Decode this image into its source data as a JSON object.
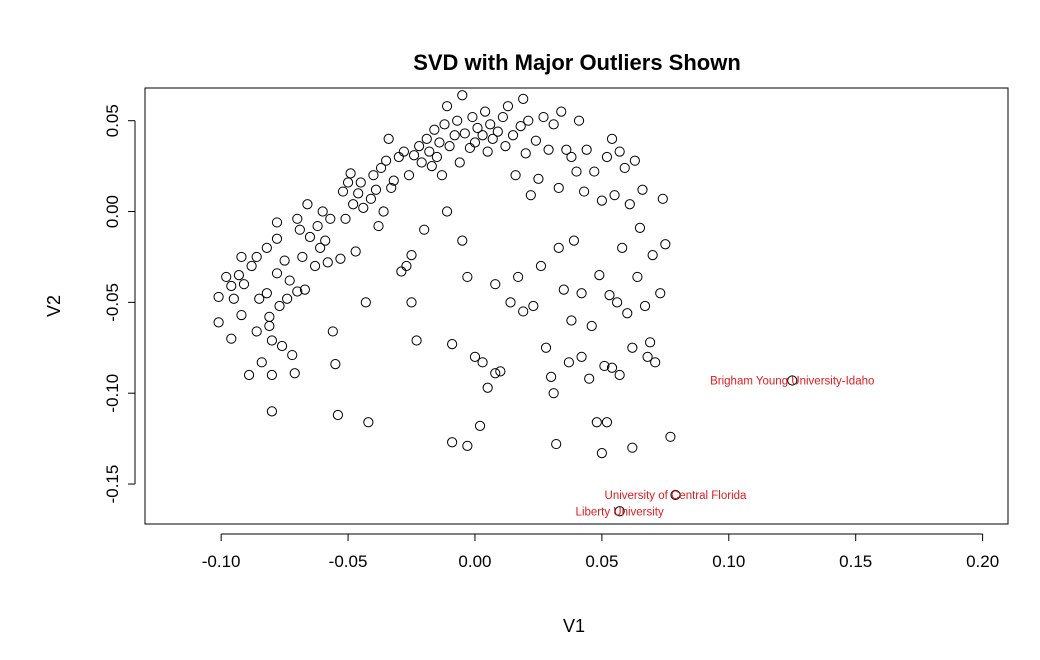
{
  "chart_data": {
    "type": "scatter",
    "title": "SVD with Major Outliers Shown",
    "xlabel": "V1",
    "ylabel": "V2",
    "xlim": [
      -0.13,
      0.21
    ],
    "ylim": [
      -0.172,
      0.068
    ],
    "xticks": [
      "-0.10",
      "-0.05",
      "0.00",
      "0.05",
      "0.10",
      "0.15",
      "0.20"
    ],
    "yticks": [
      "-0.15",
      "-0.10",
      "-0.05",
      "0.00",
      "0.05"
    ],
    "grid": false,
    "legend": "none",
    "marker_color": "#000000",
    "label_color": "#e41a1c",
    "outliers": [
      {
        "label": "Brigham Young University-Idaho",
        "x": 0.125,
        "y": -0.093
      },
      {
        "label": "University of Central Florida",
        "x": 0.079,
        "y": -0.156
      },
      {
        "label": "Liberty University",
        "x": 0.057,
        "y": -0.165
      }
    ],
    "points": [
      [
        -0.101,
        -0.061
      ],
      [
        -0.101,
        -0.047
      ],
      [
        -0.098,
        -0.036
      ],
      [
        -0.096,
        -0.041
      ],
      [
        -0.095,
        -0.048
      ],
      [
        -0.096,
        -0.07
      ],
      [
        -0.093,
        -0.035
      ],
      [
        -0.092,
        -0.025
      ],
      [
        -0.091,
        -0.04
      ],
      [
        -0.092,
        -0.057
      ],
      [
        -0.089,
        -0.09
      ],
      [
        -0.088,
        -0.03
      ],
      [
        -0.086,
        -0.025
      ],
      [
        -0.085,
        -0.048
      ],
      [
        -0.086,
        -0.066
      ],
      [
        -0.084,
        -0.083
      ],
      [
        -0.082,
        -0.02
      ],
      [
        -0.082,
        -0.045
      ],
      [
        -0.081,
        -0.058
      ],
      [
        -0.081,
        -0.063
      ],
      [
        -0.08,
        -0.071
      ],
      [
        -0.08,
        -0.09
      ],
      [
        -0.08,
        -0.11
      ],
      [
        -0.078,
        -0.006
      ],
      [
        -0.078,
        -0.015
      ],
      [
        -0.078,
        -0.034
      ],
      [
        -0.077,
        -0.052
      ],
      [
        -0.076,
        -0.074
      ],
      [
        -0.075,
        -0.027
      ],
      [
        -0.074,
        -0.048
      ],
      [
        -0.073,
        -0.038
      ],
      [
        -0.072,
        -0.079
      ],
      [
        -0.071,
        -0.089
      ],
      [
        -0.07,
        -0.004
      ],
      [
        -0.07,
        -0.044
      ],
      [
        -0.069,
        -0.01
      ],
      [
        -0.068,
        -0.025
      ],
      [
        -0.067,
        -0.043
      ],
      [
        -0.066,
        0.004
      ],
      [
        -0.065,
        -0.014
      ],
      [
        -0.063,
        -0.03
      ],
      [
        -0.062,
        -0.008
      ],
      [
        -0.061,
        -0.02
      ],
      [
        -0.06,
        0.0
      ],
      [
        -0.059,
        -0.016
      ],
      [
        -0.058,
        -0.028
      ],
      [
        -0.057,
        -0.004
      ],
      [
        -0.056,
        -0.066
      ],
      [
        -0.055,
        -0.084
      ],
      [
        -0.054,
        -0.112
      ],
      [
        -0.053,
        -0.026
      ],
      [
        -0.052,
        0.011
      ],
      [
        -0.051,
        -0.004
      ],
      [
        -0.05,
        0.016
      ],
      [
        -0.049,
        0.021
      ],
      [
        -0.048,
        0.004
      ],
      [
        -0.047,
        -0.022
      ],
      [
        -0.046,
        0.01
      ],
      [
        -0.045,
        0.016
      ],
      [
        -0.044,
        0.002
      ],
      [
        -0.043,
        -0.05
      ],
      [
        -0.042,
        -0.116
      ],
      [
        -0.041,
        0.007
      ],
      [
        -0.04,
        0.02
      ],
      [
        -0.039,
        0.012
      ],
      [
        -0.038,
        -0.008
      ],
      [
        -0.037,
        0.024
      ],
      [
        -0.036,
        0.0
      ],
      [
        -0.035,
        0.028
      ],
      [
        -0.034,
        0.04
      ],
      [
        -0.033,
        0.013
      ],
      [
        -0.032,
        0.017
      ],
      [
        -0.03,
        0.03
      ],
      [
        -0.029,
        -0.033
      ],
      [
        -0.028,
        0.033
      ],
      [
        -0.027,
        -0.03
      ],
      [
        -0.026,
        0.02
      ],
      [
        -0.025,
        -0.05
      ],
      [
        -0.025,
        -0.024
      ],
      [
        -0.024,
        0.031
      ],
      [
        -0.023,
        -0.071
      ],
      [
        -0.022,
        0.036
      ],
      [
        -0.021,
        0.027
      ],
      [
        -0.02,
        -0.01
      ],
      [
        -0.019,
        0.04
      ],
      [
        -0.018,
        0.033
      ],
      [
        -0.017,
        0.025
      ],
      [
        -0.016,
        0.045
      ],
      [
        -0.015,
        0.03
      ],
      [
        -0.014,
        0.038
      ],
      [
        -0.013,
        0.02
      ],
      [
        -0.012,
        0.048
      ],
      [
        -0.011,
        0.058
      ],
      [
        -0.011,
        0.0
      ],
      [
        -0.01,
        0.036
      ],
      [
        -0.009,
        -0.073
      ],
      [
        -0.009,
        -0.127
      ],
      [
        -0.008,
        0.042
      ],
      [
        -0.007,
        0.05
      ],
      [
        -0.006,
        0.027
      ],
      [
        -0.005,
        0.064
      ],
      [
        -0.005,
        -0.016
      ],
      [
        -0.004,
        0.043
      ],
      [
        -0.003,
        -0.129
      ],
      [
        -0.003,
        -0.036
      ],
      [
        -0.002,
        0.035
      ],
      [
        -0.001,
        0.052
      ],
      [
        0.0,
        0.038
      ],
      [
        0.0,
        -0.08
      ],
      [
        0.001,
        0.046
      ],
      [
        0.002,
        -0.118
      ],
      [
        0.003,
        0.042
      ],
      [
        0.003,
        -0.083
      ],
      [
        0.004,
        0.055
      ],
      [
        0.005,
        0.033
      ],
      [
        0.005,
        -0.097
      ],
      [
        0.006,
        0.048
      ],
      [
        0.007,
        0.04
      ],
      [
        0.008,
        -0.089
      ],
      [
        0.008,
        -0.04
      ],
      [
        0.009,
        0.044
      ],
      [
        0.01,
        -0.088
      ],
      [
        0.011,
        0.052
      ],
      [
        0.012,
        0.036
      ],
      [
        0.013,
        0.058
      ],
      [
        0.014,
        -0.05
      ],
      [
        0.015,
        0.042
      ],
      [
        0.016,
        0.02
      ],
      [
        0.017,
        -0.036
      ],
      [
        0.018,
        0.047
      ],
      [
        0.019,
        0.062
      ],
      [
        0.019,
        -0.055
      ],
      [
        0.02,
        0.032
      ],
      [
        0.021,
        0.05
      ],
      [
        0.022,
        0.009
      ],
      [
        0.023,
        -0.052
      ],
      [
        0.024,
        0.039
      ],
      [
        0.025,
        0.018
      ],
      [
        0.026,
        -0.03
      ],
      [
        0.027,
        0.052
      ],
      [
        0.028,
        -0.075
      ],
      [
        0.029,
        0.034
      ],
      [
        0.03,
        -0.091
      ],
      [
        0.031,
        0.048
      ],
      [
        0.031,
        -0.1
      ],
      [
        0.032,
        -0.128
      ],
      [
        0.033,
        0.013
      ],
      [
        0.033,
        -0.02
      ],
      [
        0.034,
        0.055
      ],
      [
        0.035,
        -0.043
      ],
      [
        0.036,
        0.034
      ],
      [
        0.037,
        -0.083
      ],
      [
        0.038,
        0.03
      ],
      [
        0.038,
        -0.06
      ],
      [
        0.039,
        -0.016
      ],
      [
        0.04,
        0.022
      ],
      [
        0.041,
        0.05
      ],
      [
        0.042,
        -0.045
      ],
      [
        0.042,
        -0.08
      ],
      [
        0.043,
        0.011
      ],
      [
        0.044,
        0.034
      ],
      [
        0.045,
        -0.092
      ],
      [
        0.046,
        -0.063
      ],
      [
        0.047,
        0.022
      ],
      [
        0.048,
        -0.116
      ],
      [
        0.049,
        -0.035
      ],
      [
        0.05,
        0.006
      ],
      [
        0.05,
        -0.133
      ],
      [
        0.051,
        -0.085
      ],
      [
        0.052,
        0.03
      ],
      [
        0.052,
        -0.116
      ],
      [
        0.053,
        -0.046
      ],
      [
        0.054,
        0.04
      ],
      [
        0.054,
        -0.086
      ],
      [
        0.055,
        0.009
      ],
      [
        0.056,
        -0.05
      ],
      [
        0.057,
        0.033
      ],
      [
        0.057,
        -0.09
      ],
      [
        0.058,
        -0.02
      ],
      [
        0.059,
        0.024
      ],
      [
        0.06,
        -0.056
      ],
      [
        0.061,
        0.004
      ],
      [
        0.062,
        -0.13
      ],
      [
        0.062,
        -0.075
      ],
      [
        0.063,
        0.028
      ],
      [
        0.064,
        -0.036
      ],
      [
        0.065,
        -0.009
      ],
      [
        0.066,
        0.012
      ],
      [
        0.067,
        -0.052
      ],
      [
        0.068,
        -0.08
      ],
      [
        0.069,
        -0.072
      ],
      [
        0.07,
        -0.024
      ],
      [
        0.071,
        -0.083
      ],
      [
        0.073,
        -0.045
      ],
      [
        0.074,
        0.007
      ],
      [
        0.075,
        -0.018
      ],
      [
        0.077,
        -0.124
      ]
    ]
  }
}
